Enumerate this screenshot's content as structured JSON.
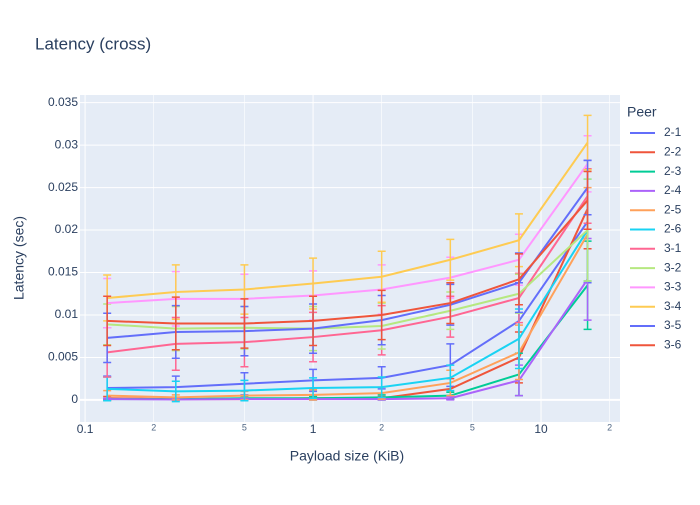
{
  "chart_data": {
    "type": "line",
    "title": "Latency (cross)",
    "x_label": "Payload size (KiB)",
    "y_label": "Latency (sec)",
    "legend_title": "Peer",
    "xlog": true,
    "grid": true,
    "x": [
      0.125,
      0.25,
      0.5,
      1,
      2,
      4,
      8,
      16
    ],
    "xlim": [
      0.095,
      22.2
    ],
    "xticks": [
      0.1,
      {
        "value": 0.2,
        "label": "2"
      },
      {
        "value": 0.5,
        "label": "5"
      },
      1,
      {
        "value": 2,
        "label": "2"
      },
      {
        "value": 5,
        "label": "5"
      },
      10,
      {
        "value": 20,
        "label": "2"
      }
    ],
    "ylim": [
      -0.0026,
      0.0359
    ],
    "yticks": [
      0,
      0.005,
      0.01,
      0.015,
      0.02,
      0.025,
      0.03,
      0.035
    ],
    "series": [
      {
        "name": "2-1",
        "color": "#636efa",
        "values": [
          0.0014,
          0.0015,
          0.0019,
          0.0023,
          0.0026,
          0.0041,
          0.0093,
          0.021
        ],
        "errors": [
          0.0014,
          0.0013,
          0.0013,
          0.0013,
          0.0013,
          0.0025,
          0.0045,
          0.0072
        ]
      },
      {
        "name": "2-2",
        "color": "#EF553B",
        "values": [
          0.0002,
          0.0001,
          0.0001,
          0.0002,
          0.0002,
          0.0013,
          0.005,
          0.0225
        ],
        "errors": [
          0.0002,
          0.0001,
          0.0001,
          0.0002,
          0.0002,
          0.0012,
          0.003,
          0.0047
        ]
      },
      {
        "name": "2-3",
        "color": "#00cc96",
        "values": [
          0.0001,
          0.0001,
          0.0002,
          0.0002,
          0.0003,
          0.0005,
          0.003,
          0.0135
        ],
        "errors": [
          0.0001,
          0.0001,
          0.0002,
          0.0002,
          0.0003,
          0.0004,
          0.0025,
          0.0052
        ]
      },
      {
        "name": "2-4",
        "color": "#ab63fa",
        "values": [
          0.0001,
          5e-05,
          0.0001,
          0.0001,
          0.0001,
          0.0002,
          0.0023,
          0.0142
        ],
        "errors": [
          0.0001,
          0.0001,
          0.0001,
          0.0001,
          0.0001,
          0.0002,
          0.0018,
          0.0048
        ]
      },
      {
        "name": "2-5",
        "color": "#FFA15A",
        "values": [
          0.0005,
          0.0003,
          0.0005,
          0.0006,
          0.0008,
          0.002,
          0.0056,
          0.0195
        ],
        "errors": [
          0.0006,
          0.0003,
          0.0005,
          0.0006,
          0.0007,
          0.0015,
          0.0032,
          0.0055
        ]
      },
      {
        "name": "2-6",
        "color": "#19d3f3",
        "values": [
          0.0013,
          0.001,
          0.0011,
          0.0014,
          0.0015,
          0.0026,
          0.0072,
          0.02
        ],
        "errors": [
          0.0014,
          0.0012,
          0.0012,
          0.0012,
          0.0012,
          0.0015,
          0.0035,
          0.006
        ]
      },
      {
        "name": "3-1",
        "color": "#FF6692",
        "values": [
          0.0056,
          0.0066,
          0.0068,
          0.0074,
          0.0082,
          0.0098,
          0.012,
          0.024
        ],
        "errors": [
          0.0029,
          0.0031,
          0.0029,
          0.0029,
          0.0029,
          0.0024,
          0.0029,
          0.0032
        ]
      },
      {
        "name": "3-2",
        "color": "#B6E880",
        "values": [
          0.0089,
          0.0084,
          0.0085,
          0.0084,
          0.0087,
          0.0105,
          0.0125,
          0.02
        ],
        "errors": [
          0.0024,
          0.0026,
          0.0025,
          0.0026,
          0.0027,
          0.0022,
          0.0023,
          0.006
        ]
      },
      {
        "name": "3-3",
        "color": "#FF97FF",
        "values": [
          0.0114,
          0.0119,
          0.0119,
          0.0123,
          0.013,
          0.0144,
          0.0165,
          0.0278
        ],
        "errors": [
          0.0029,
          0.0032,
          0.0029,
          0.0029,
          0.0029,
          0.0024,
          0.003,
          0.0033
        ]
      },
      {
        "name": "3-4",
        "color": "#FECB52",
        "values": [
          0.012,
          0.0127,
          0.013,
          0.0137,
          0.0145,
          0.0165,
          0.0188,
          0.0303
        ],
        "errors": [
          0.0027,
          0.0032,
          0.0029,
          0.003,
          0.003,
          0.0024,
          0.0031,
          0.0032
        ]
      },
      {
        "name": "3-5",
        "color": "#636efa",
        "values": [
          0.0073,
          0.008,
          0.0081,
          0.0084,
          0.0094,
          0.0112,
          0.0138,
          0.025
        ],
        "errors": [
          0.0029,
          0.0031,
          0.0029,
          0.0029,
          0.0029,
          0.0024,
          0.0035,
          0.0032
        ]
      },
      {
        "name": "3-6",
        "color": "#EF553B",
        "values": [
          0.0093,
          0.009,
          0.009,
          0.0093,
          0.01,
          0.0114,
          0.0142,
          0.0235
        ],
        "errors": [
          0.0029,
          0.0031,
          0.0029,
          0.0029,
          0.0029,
          0.0024,
          0.003,
          0.0034
        ]
      }
    ]
  }
}
